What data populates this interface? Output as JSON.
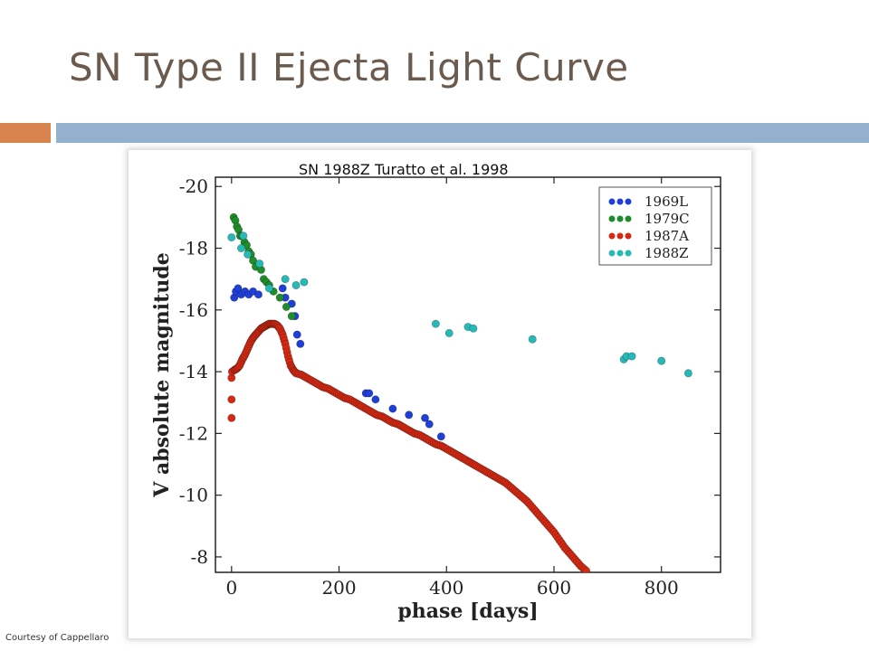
{
  "slide": {
    "title": "SN Type II Ejecta Light Curve",
    "caption": "SN 1988Z   Turatto et al. 1998",
    "courtesy": "Courtesy of Cappellaro",
    "accent_color": "#d8824d",
    "bar_color": "#93b1cf",
    "title_color": "#6b5a4e"
  },
  "chart_data": {
    "type": "scatter",
    "title": "",
    "xlabel": "phase [days]",
    "ylabel": "V absolute magnitude",
    "xlim": [
      -30,
      910
    ],
    "ylim": [
      -7.5,
      -20.3
    ],
    "y_inverted": true,
    "xticks": [
      0,
      200,
      400,
      600,
      800
    ],
    "yticks": [
      -20,
      -18,
      -16,
      -14,
      -12,
      -10,
      -8
    ],
    "grid": false,
    "legend_position": "top-right",
    "series": [
      {
        "name": "1969L",
        "color": "#1f3fd6",
        "points": [
          [
            5,
            -16.4
          ],
          [
            8,
            -16.6
          ],
          [
            12,
            -16.7
          ],
          [
            18,
            -16.5
          ],
          [
            25,
            -16.6
          ],
          [
            32,
            -16.5
          ],
          [
            40,
            -16.6
          ],
          [
            50,
            -16.5
          ],
          [
            95,
            -16.7
          ],
          [
            100,
            -16.4
          ],
          [
            112,
            -16.2
          ],
          [
            118,
            -15.8
          ],
          [
            122,
            -15.2
          ],
          [
            128,
            -14.9
          ],
          [
            250,
            -13.3
          ],
          [
            256,
            -13.3
          ],
          [
            268,
            -13.1
          ],
          [
            300,
            -12.8
          ],
          [
            330,
            -12.6
          ],
          [
            360,
            -12.5
          ],
          [
            368,
            -12.3
          ],
          [
            390,
            -11.9
          ]
        ]
      },
      {
        "name": "1979C",
        "color": "#1e8c2a",
        "points": [
          [
            4,
            -19.0
          ],
          [
            7,
            -18.9
          ],
          [
            10,
            -18.7
          ],
          [
            13,
            -18.6
          ],
          [
            16,
            -18.4
          ],
          [
            20,
            -18.4
          ],
          [
            24,
            -18.2
          ],
          [
            28,
            -18.1
          ],
          [
            32,
            -17.9
          ],
          [
            36,
            -17.8
          ],
          [
            40,
            -17.6
          ],
          [
            45,
            -17.4
          ],
          [
            55,
            -17.3
          ],
          [
            60,
            -17.0
          ],
          [
            65,
            -16.9
          ],
          [
            70,
            -16.8
          ],
          [
            78,
            -16.6
          ],
          [
            90,
            -16.4
          ],
          [
            102,
            -16.1
          ],
          [
            112,
            -15.8
          ]
        ]
      },
      {
        "name": "1987A",
        "color": "#d42a14",
        "points": [
          [
            0,
            -12.5
          ],
          [
            0,
            -13.1
          ],
          [
            0,
            -13.8
          ],
          [
            1,
            -14.0
          ],
          [
            5,
            -14.05
          ],
          [
            10,
            -14.1
          ],
          [
            15,
            -14.2
          ],
          [
            20,
            -14.4
          ],
          [
            25,
            -14.55
          ],
          [
            30,
            -14.75
          ],
          [
            35,
            -14.95
          ],
          [
            40,
            -15.1
          ],
          [
            45,
            -15.2
          ],
          [
            50,
            -15.3
          ],
          [
            55,
            -15.4
          ],
          [
            60,
            -15.45
          ],
          [
            65,
            -15.5
          ],
          [
            70,
            -15.55
          ],
          [
            75,
            -15.55
          ],
          [
            80,
            -15.55
          ],
          [
            85,
            -15.5
          ],
          [
            90,
            -15.4
          ],
          [
            95,
            -15.2
          ],
          [
            100,
            -14.9
          ],
          [
            105,
            -14.5
          ],
          [
            110,
            -14.2
          ],
          [
            115,
            -14.05
          ],
          [
            120,
            -13.95
          ],
          [
            130,
            -13.9
          ],
          [
            140,
            -13.8
          ],
          [
            150,
            -13.7
          ],
          [
            160,
            -13.6
          ],
          [
            170,
            -13.5
          ],
          [
            180,
            -13.45
          ],
          [
            190,
            -13.35
          ],
          [
            200,
            -13.25
          ],
          [
            210,
            -13.15
          ],
          [
            220,
            -13.1
          ],
          [
            230,
            -13.0
          ],
          [
            240,
            -12.9
          ],
          [
            250,
            -12.8
          ],
          [
            260,
            -12.7
          ],
          [
            270,
            -12.6
          ],
          [
            280,
            -12.55
          ],
          [
            290,
            -12.45
          ],
          [
            300,
            -12.35
          ],
          [
            310,
            -12.3
          ],
          [
            320,
            -12.2
          ],
          [
            330,
            -12.1
          ],
          [
            340,
            -12.0
          ],
          [
            350,
            -11.95
          ],
          [
            360,
            -11.85
          ],
          [
            370,
            -11.75
          ],
          [
            380,
            -11.65
          ],
          [
            390,
            -11.6
          ],
          [
            400,
            -11.5
          ],
          [
            410,
            -11.4
          ],
          [
            420,
            -11.3
          ],
          [
            430,
            -11.2
          ],
          [
            440,
            -11.1
          ],
          [
            450,
            -11.0
          ],
          [
            460,
            -10.9
          ],
          [
            470,
            -10.8
          ],
          [
            480,
            -10.7
          ],
          [
            490,
            -10.6
          ],
          [
            500,
            -10.5
          ],
          [
            510,
            -10.4
          ],
          [
            520,
            -10.25
          ],
          [
            530,
            -10.1
          ],
          [
            540,
            -9.95
          ],
          [
            550,
            -9.8
          ],
          [
            560,
            -9.6
          ],
          [
            570,
            -9.4
          ],
          [
            580,
            -9.2
          ],
          [
            590,
            -9.0
          ],
          [
            600,
            -8.8
          ],
          [
            610,
            -8.55
          ],
          [
            620,
            -8.3
          ],
          [
            630,
            -8.1
          ],
          [
            640,
            -7.9
          ],
          [
            650,
            -7.7
          ],
          [
            660,
            -7.55
          ]
        ]
      },
      {
        "name": "1988Z",
        "color": "#27b8b8",
        "points": [
          [
            0,
            -18.35
          ],
          [
            18,
            -18.0
          ],
          [
            22,
            -18.4
          ],
          [
            30,
            -17.8
          ],
          [
            52,
            -17.5
          ],
          [
            70,
            -16.7
          ],
          [
            100,
            -17.0
          ],
          [
            120,
            -16.8
          ],
          [
            135,
            -16.9
          ],
          [
            380,
            -15.55
          ],
          [
            405,
            -15.25
          ],
          [
            440,
            -15.45
          ],
          [
            450,
            -15.4
          ],
          [
            560,
            -15.05
          ],
          [
            730,
            -14.4
          ],
          [
            735,
            -14.5
          ],
          [
            745,
            -14.5
          ],
          [
            800,
            -14.35
          ],
          [
            850,
            -13.95
          ]
        ]
      }
    ]
  }
}
